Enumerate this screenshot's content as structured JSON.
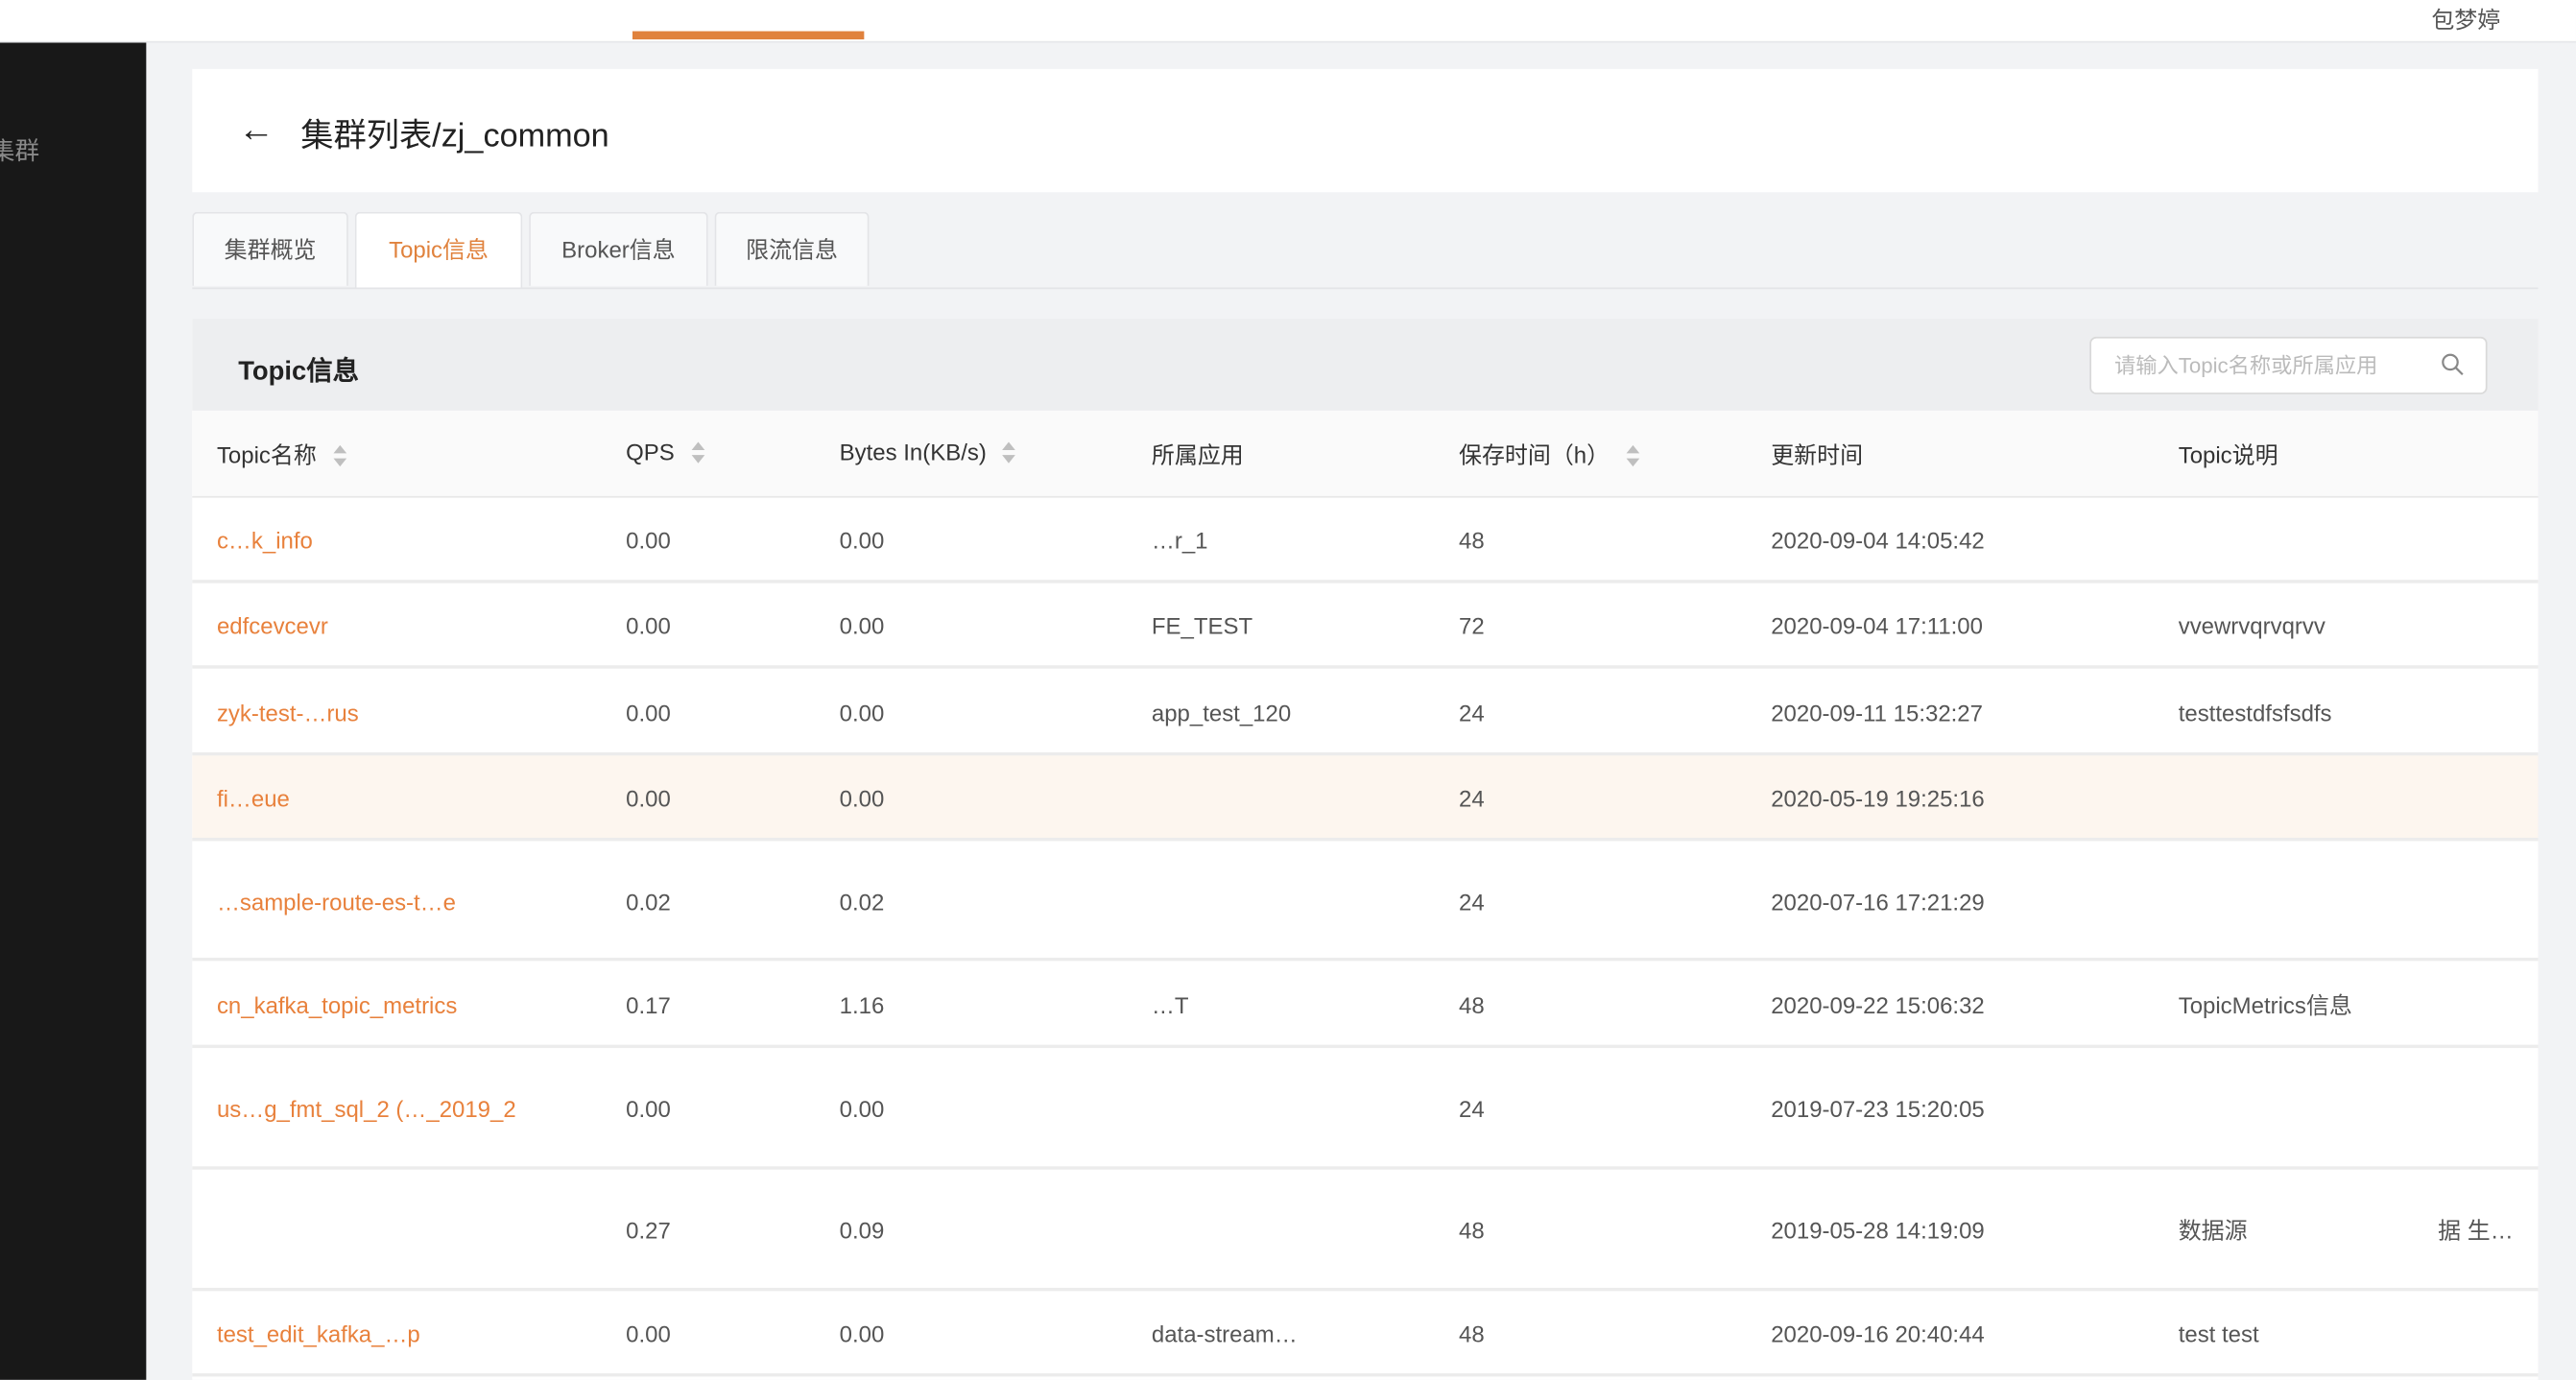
{
  "topbar": {
    "user_name": "包梦婷",
    "accent_color": "#e0823d"
  },
  "sidebar": {
    "items": [
      {
        "label": "集群"
      }
    ]
  },
  "header": {
    "back_icon": "arrow-left-icon",
    "title": "集群列表/zj_common"
  },
  "tabs": [
    {
      "label": "集群概览",
      "active": false
    },
    {
      "label": "Topic信息",
      "active": true
    },
    {
      "label": "Broker信息",
      "active": false
    },
    {
      "label": "限流信息",
      "active": false
    }
  ],
  "section": {
    "title": "Topic信息",
    "search": {
      "placeholder": "请输入Topic名称或所属应用",
      "value": "",
      "icon": "search-icon"
    }
  },
  "table": {
    "columns": [
      {
        "label": "Topic名称",
        "sortable": true
      },
      {
        "label": "QPS",
        "sortable": true
      },
      {
        "label": "Bytes In(KB/s)",
        "sortable": true
      },
      {
        "label": "所属应用",
        "sortable": false
      },
      {
        "label": "保存时间（h）",
        "sortable": true
      },
      {
        "label": "更新时间",
        "sortable": false
      },
      {
        "label": "Topic说明",
        "sortable": false
      }
    ],
    "rows": [
      {
        "name": "c…k_info",
        "qps": "0.00",
        "bytes_in": "0.00",
        "app": "…r_1",
        "retention": "48",
        "updated": "2020-09-04 14:05:42",
        "desc": ""
      },
      {
        "name": "edfcevcevr",
        "qps": "0.00",
        "bytes_in": "0.00",
        "app": "FE_TEST",
        "retention": "72",
        "updated": "2020-09-04 17:11:00",
        "desc": "vvewrvqrvqrvv"
      },
      {
        "name": "zyk-test-…rus",
        "qps": "0.00",
        "bytes_in": "0.00",
        "app": "app_test_120",
        "retention": "24",
        "updated": "2020-09-11 15:32:27",
        "desc": "testtestdfsfsdfs"
      },
      {
        "name": "fi…eue",
        "qps": "0.00",
        "bytes_in": "0.00",
        "app": "",
        "retention": "24",
        "updated": "2020-05-19 19:25:16",
        "desc": "",
        "highlighted": true
      },
      {
        "name": "…sample-route-es-t…e",
        "qps": "0.02",
        "bytes_in": "0.02",
        "app": "",
        "retention": "24",
        "updated": "2020-07-16 17:21:29",
        "desc": ""
      },
      {
        "name": "cn_kafka_topic_metrics",
        "qps": "0.17",
        "bytes_in": "1.16",
        "app": "…T",
        "retention": "48",
        "updated": "2020-09-22 15:06:32",
        "desc": "TopicMetrics信息"
      },
      {
        "name": "us…g_fmt_sql_2 (…_2019_2",
        "qps": "0.00",
        "bytes_in": "0.00",
        "app": "",
        "retention": "24",
        "updated": "2019-07-23 15:20:05",
        "desc": ""
      },
      {
        "name": "",
        "qps": "0.27",
        "bytes_in": "0.09",
        "app": "",
        "retention": "48",
        "updated": "2019-05-28 14:19:09",
        "desc": "数据源",
        "desc_extra": "据 生…"
      },
      {
        "name": "test_edit_kafka_…p",
        "qps": "0.00",
        "bytes_in": "0.00",
        "app": "data-stream…",
        "retention": "48",
        "updated": "2020-09-16 20:40:44",
        "desc": "test test"
      }
    ]
  }
}
